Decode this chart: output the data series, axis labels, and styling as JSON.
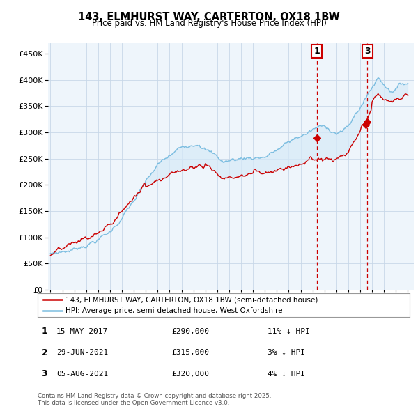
{
  "title1": "143, ELMHURST WAY, CARTERTON, OX18 1BW",
  "title2": "Price paid vs. HM Land Registry's House Price Index (HPI)",
  "ytick_vals": [
    0,
    50000,
    100000,
    150000,
    200000,
    250000,
    300000,
    350000,
    400000,
    450000
  ],
  "ylim": [
    0,
    470000
  ],
  "xlim_start": 1994.8,
  "xlim_end": 2025.5,
  "hpi_color": "#7bbde0",
  "price_color": "#cc0000",
  "fill_color": "#d6eaf8",
  "marker1_x": 2017.37,
  "marker1_y": 290000,
  "marker2_x": 2021.49,
  "marker2_y": 315000,
  "marker3_x": 2021.61,
  "marker3_y": 320000,
  "legend_line1": "143, ELMHURST WAY, CARTERTON, OX18 1BW (semi-detached house)",
  "legend_line2": "HPI: Average price, semi-detached house, West Oxfordshire",
  "table_rows": [
    [
      "1",
      "15-MAY-2017",
      "£290,000",
      "11% ↓ HPI"
    ],
    [
      "2",
      "29-JUN-2021",
      "£315,000",
      "3% ↓ HPI"
    ],
    [
      "3",
      "05-AUG-2021",
      "£320,000",
      "4% ↓ HPI"
    ]
  ],
  "footnote": "Contains HM Land Registry data © Crown copyright and database right 2025.\nThis data is licensed under the Open Government Licence v3.0.",
  "bg_color": "#ffffff",
  "grid_color": "#c8d8e8",
  "chart_bg": "#eef5fb"
}
